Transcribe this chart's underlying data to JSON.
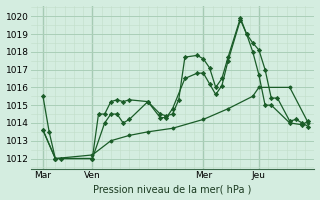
{
  "bg_color": "#d4ede0",
  "grid_color_major": "#aacfb8",
  "grid_color_minor": "#c2deca",
  "line_color": "#1a5c28",
  "title": "Pression niveau de la mer( hPa )",
  "ylabel_ticks": [
    1012,
    1013,
    1014,
    1015,
    1016,
    1017,
    1018,
    1019,
    1020
  ],
  "ylim": [
    1011.4,
    1020.6
  ],
  "xlim": [
    -2,
    90
  ],
  "day_labels": [
    "Mar",
    "Ven",
    "Mer",
    "Jeu"
  ],
  "day_positions": [
    2,
    18,
    54,
    72
  ],
  "series1_x": [
    2,
    4,
    6,
    8,
    18,
    20,
    22,
    24,
    26,
    28,
    30,
    36,
    40,
    42,
    44,
    46,
    48,
    52,
    54,
    56,
    58,
    60,
    62,
    66,
    68,
    70,
    72,
    74,
    76,
    78,
    82,
    84,
    86,
    88
  ],
  "series1_y": [
    1015.5,
    1013.5,
    1012.0,
    1012.0,
    1012.0,
    1014.5,
    1014.5,
    1015.2,
    1015.3,
    1015.2,
    1015.3,
    1015.2,
    1014.5,
    1014.4,
    1014.5,
    1015.3,
    1017.7,
    1017.8,
    1017.6,
    1017.1,
    1016.0,
    1016.5,
    1017.7,
    1019.9,
    1019.0,
    1018.5,
    1018.1,
    1017.0,
    1015.4,
    1015.4,
    1014.1,
    1014.2,
    1014.0,
    1013.8
  ],
  "series2_x": [
    2,
    6,
    18,
    22,
    24,
    26,
    28,
    30,
    36,
    40,
    42,
    44,
    48,
    52,
    54,
    56,
    58,
    60,
    62,
    66,
    68,
    70,
    72,
    74,
    76,
    82,
    86,
    88
  ],
  "series2_y": [
    1013.6,
    1012.0,
    1012.0,
    1014.0,
    1014.5,
    1014.5,
    1014.0,
    1014.2,
    1015.2,
    1014.3,
    1014.3,
    1014.8,
    1016.5,
    1016.8,
    1016.8,
    1016.2,
    1015.6,
    1016.1,
    1017.5,
    1019.8,
    1019.0,
    1018.0,
    1016.7,
    1015.0,
    1015.0,
    1014.0,
    1013.9,
    1014.1
  ],
  "series3_x": [
    2,
    6,
    18,
    24,
    30,
    36,
    44,
    54,
    62,
    70,
    72,
    82,
    88
  ],
  "series3_y": [
    1013.6,
    1012.0,
    1012.2,
    1013.0,
    1013.3,
    1013.5,
    1013.7,
    1014.2,
    1014.8,
    1015.5,
    1016.0,
    1016.0,
    1014.0
  ]
}
